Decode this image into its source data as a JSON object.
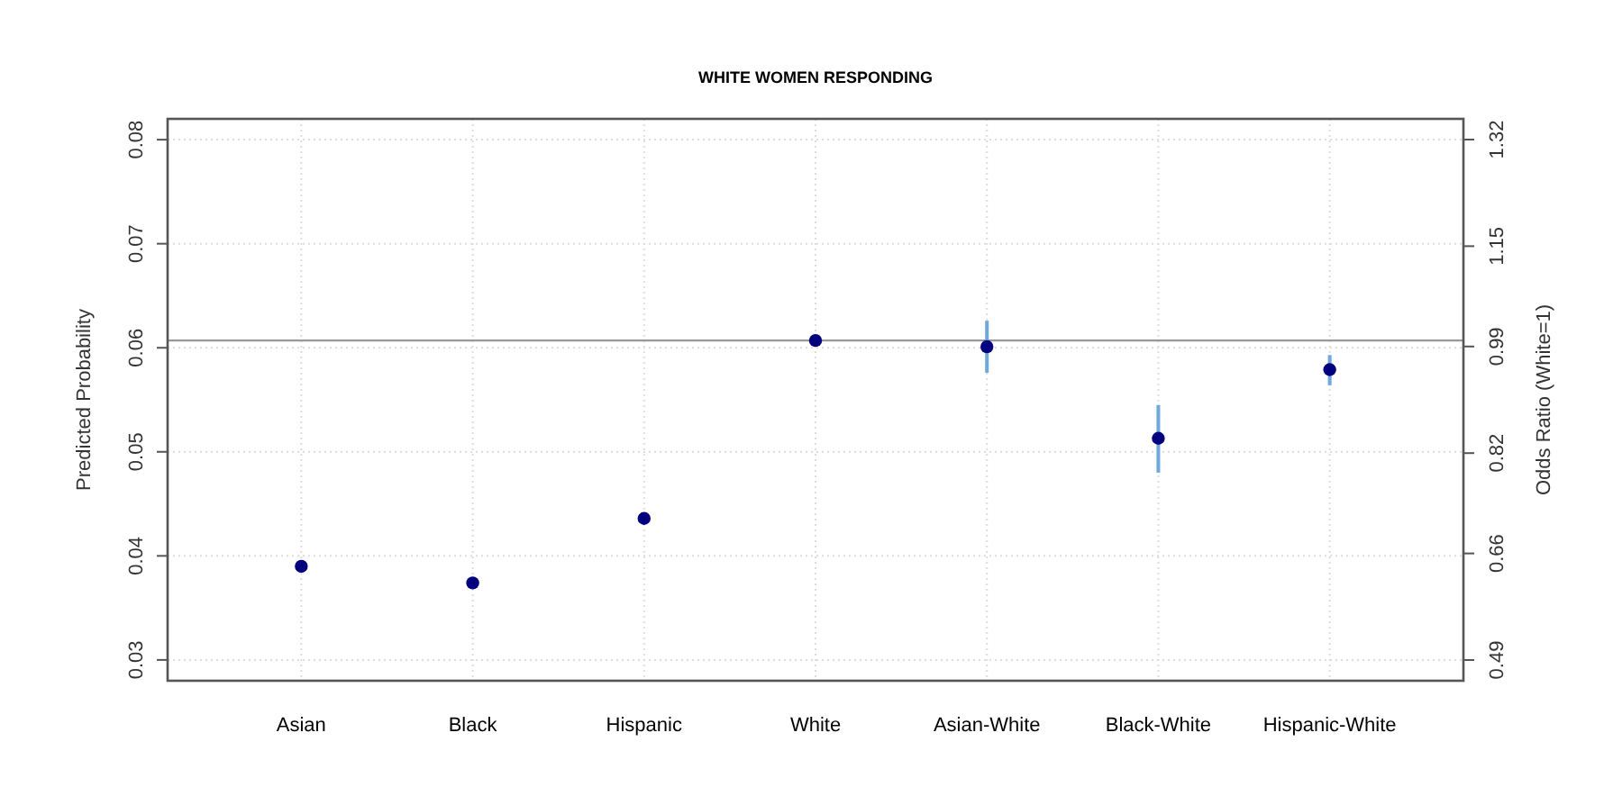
{
  "chart_data": {
    "type": "scatter",
    "title": "WHITE WOMEN RESPONDING",
    "ylabel": "Predicted Probability",
    "y2label": "Odds Ratio (White=1)",
    "categories": [
      "Asian",
      "Black",
      "Hispanic",
      "White",
      "Asian-White",
      "Black-White",
      "Hispanic-White"
    ],
    "series": [
      {
        "color": "#00007f",
        "values": [
          0.039,
          0.0374,
          0.0436,
          0.0607,
          0.0601,
          0.0513,
          0.0579
        ],
        "errors": [
          0.0006,
          0.0004,
          0.0004,
          null,
          [
            0.0576,
            0.0626
          ],
          [
            0.048,
            0.0545
          ],
          [
            0.0564,
            0.0593
          ]
        ]
      }
    ],
    "ylim": [
      0.028,
      0.082
    ],
    "yticks": [
      0.03,
      0.04,
      0.05,
      0.06,
      0.07,
      0.08
    ],
    "y2lim": [
      0.457,
      1.353
    ],
    "y2ticks": [
      0.49,
      0.66,
      0.82,
      0.99,
      1.15,
      1.32
    ],
    "ref_lines": [
      {
        "axis": "y",
        "value": 0.0607,
        "color": "#999999"
      }
    ],
    "grid": true,
    "marker": "circle"
  }
}
